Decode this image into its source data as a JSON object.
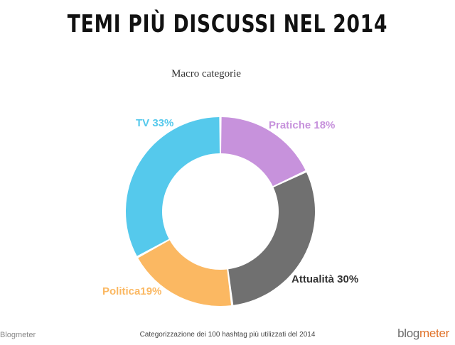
{
  "header": {
    "title": "TEMI PIÙ DISCUSSI NEL 2014"
  },
  "chart_data": {
    "type": "pie",
    "donut": true,
    "title": "Macro categorie",
    "slices": [
      {
        "label": "Pratiche 18%",
        "category": "Pratiche",
        "value": 18,
        "color": "#c792dc"
      },
      {
        "label": "Attualità 30%",
        "category": "Attualità",
        "value": 30,
        "color": "#707070"
      },
      {
        "label": "Politica19%",
        "category": "Politica",
        "value": 19,
        "color": "#fbb862"
      },
      {
        "label": "TV 33%",
        "category": "TV",
        "value": 33,
        "color": "#55c9ec"
      }
    ]
  },
  "footer": {
    "left_text": "Blogmeter",
    "caption": "Categorizzazione dei 100 hashtag più utilizzati del 2014",
    "logo_blog": "blog",
    "logo_meter": "meter"
  }
}
